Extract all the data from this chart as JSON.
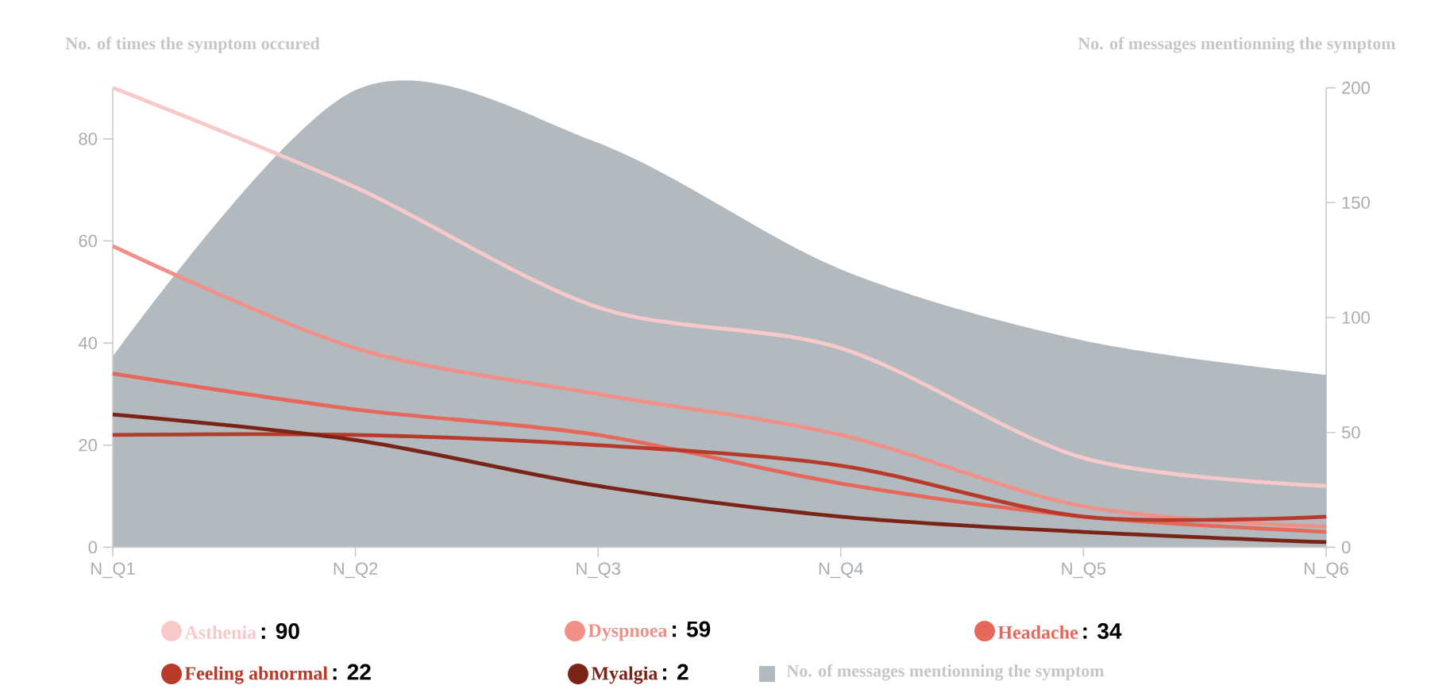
{
  "chart_data": {
    "type": "line",
    "ylabel": "No. of times the symptom occured",
    "y2label": "No. of messages mentionning the symptom",
    "categories": [
      "N_Q1",
      "N_Q2",
      "N_Q3",
      "N_Q4",
      "N_Q5",
      "N_Q6"
    ],
    "ylim": [
      0,
      90
    ],
    "yticks": [
      0,
      20,
      40,
      60,
      80
    ],
    "y2lim": [
      0,
      200
    ],
    "y2ticks": [
      0,
      50,
      100,
      150,
      200
    ],
    "legend": "bottom",
    "series": [
      {
        "name": "Asthenia",
        "color": "#f7c9c9",
        "values": [
          90,
          70.5,
          47,
          39,
          17.5,
          12
        ]
      },
      {
        "name": "Dyspnoea",
        "color": "#f09088",
        "values": [
          59,
          39,
          30,
          22,
          8,
          4
        ]
      },
      {
        "name": "Headache",
        "color": "#e5685a",
        "values": [
          34,
          27,
          22,
          12.5,
          6,
          3
        ]
      },
      {
        "name": "Feeling abnormal",
        "color": "#b83a2a",
        "values": [
          22,
          22,
          20,
          16,
          6,
          6
        ]
      },
      {
        "name": "Myalgia",
        "color": "#7a2418",
        "values": [
          26,
          21,
          12,
          6,
          3,
          1
        ]
      },
      {
        "name": "No. of messages mentionning the symptom",
        "type": "area",
        "axis": "y2",
        "color": "#b2bac0",
        "values": [
          83,
          199,
          176,
          121,
          90,
          75
        ]
      }
    ],
    "annotations": [
      ": 90",
      ": 59",
      ": 34",
      ": 22",
      ": 2"
    ]
  }
}
